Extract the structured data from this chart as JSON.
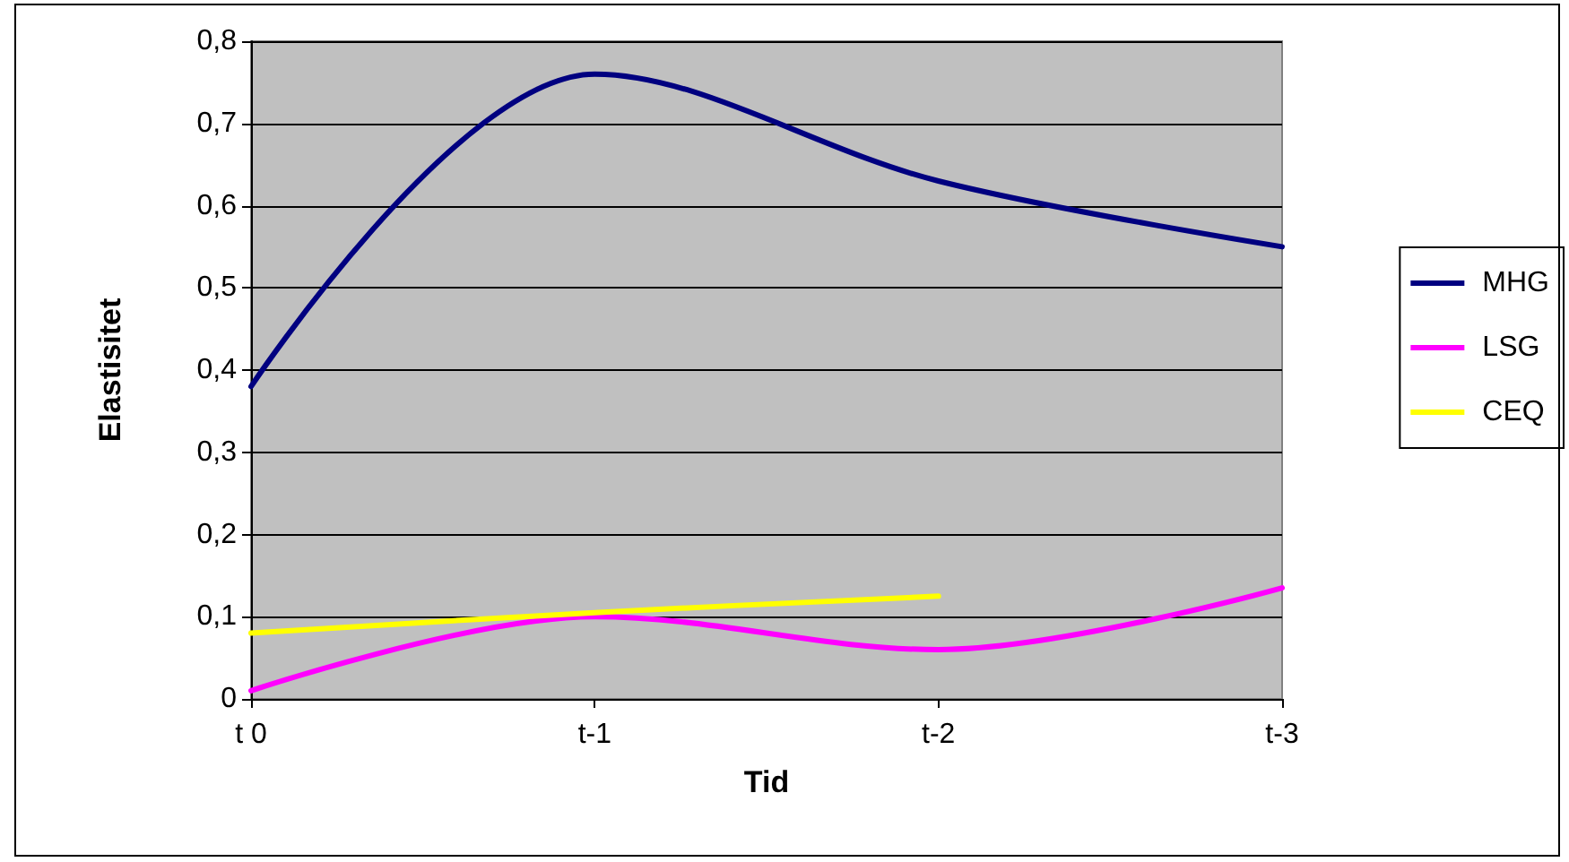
{
  "chart_data": {
    "type": "line",
    "xlabel": "Tid",
    "ylabel": "Elastisitet",
    "categories": [
      "t 0",
      "t-1",
      "t-2",
      "t-3"
    ],
    "series": [
      {
        "name": "MHG",
        "color": "#000080",
        "values": [
          0.38,
          0.76,
          0.63,
          0.55
        ]
      },
      {
        "name": "LSG",
        "color": "#ff00ff",
        "values": [
          0.01,
          0.1,
          0.06,
          0.135
        ]
      },
      {
        "name": "CEQ",
        "color": "#ffff00",
        "values": [
          0.08,
          0.105,
          0.125,
          null
        ]
      }
    ],
    "ylim": [
      0,
      0.8
    ],
    "yticks": [
      0,
      {
        "value": 0.1,
        "label": "0,1"
      },
      {
        "value": 0.2,
        "label": "0,2"
      },
      {
        "value": 0.3,
        "label": "0,3"
      },
      {
        "value": 0.4,
        "label": "0,4"
      },
      {
        "value": 0.5,
        "label": "0,5"
      },
      {
        "value": 0.6,
        "label": "0,6"
      },
      {
        "value": 0.7,
        "label": "0,7"
      },
      {
        "value": 0.8,
        "label": "0,8"
      }
    ],
    "grid": "y",
    "legend": "right",
    "marker": "none",
    "line_style": "solid"
  }
}
